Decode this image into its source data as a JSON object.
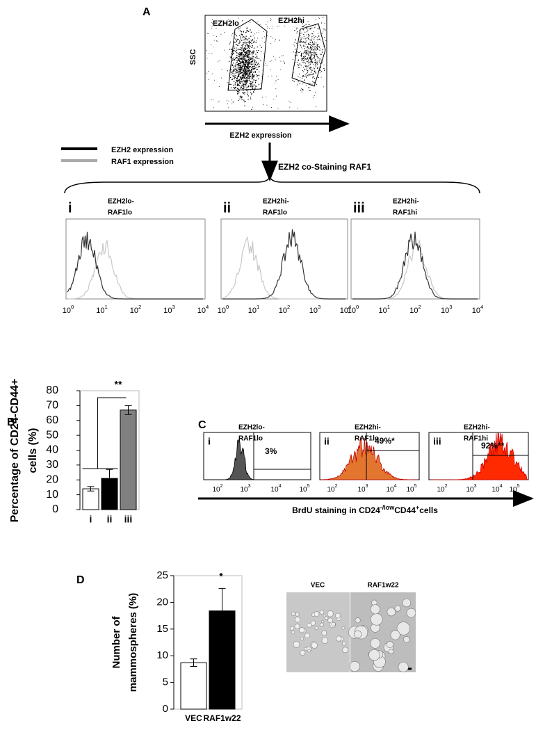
{
  "panel_a": {
    "letter": "A",
    "y_label": "SSC",
    "gate_labels": [
      "EZH2lo",
      "EZH2hi"
    ],
    "x_label": "EZH2 expression",
    "legend": [
      "EZH2 expression",
      "RAF1 expression"
    ],
    "arrow_label": "EZH2 co-Staining RAF1",
    "histograms": [
      {
        "numeral": "i",
        "label": [
          "EZH2lo-",
          "RAF1lo"
        ]
      },
      {
        "numeral": "ii",
        "label": [
          "EZH2hi-",
          "RAF1lo"
        ]
      },
      {
        "numeral": "iii",
        "label": [
          "EZH2hi-",
          "RAF1hi"
        ]
      }
    ],
    "xticks": [
      {
        "base": "10",
        "exp": "0"
      },
      {
        "base": "10",
        "exp": "1"
      },
      {
        "base": "10",
        "exp": "2"
      },
      {
        "base": "10",
        "exp": "3"
      },
      {
        "base": "10",
        "exp": "4"
      }
    ]
  },
  "panel_c": {
    "letter": "C",
    "plots": [
      {
        "numeral": "i",
        "label": [
          "EZH2lo-",
          "RAF1lo"
        ],
        "percent": "3%"
      },
      {
        "numeral": "ii",
        "label": [
          "EZH2hi-",
          "RAF1lo"
        ],
        "percent": "49%*"
      },
      {
        "numeral": "iii",
        "label": [
          "EZH2hi-",
          "RAF1hi"
        ],
        "percent": "92%**"
      }
    ],
    "xticks": [
      {
        "base": "10",
        "exp": "2"
      },
      {
        "base": "10",
        "exp": "3"
      },
      {
        "base": "10",
        "exp": "4"
      },
      {
        "base": "10",
        "exp": "5"
      }
    ],
    "x_label": [
      "BrdU staining in CD24",
      "-/low",
      "CD44",
      "+",
      "cells"
    ]
  },
  "panel_d_images": {
    "labels": [
      "VEC",
      "RAF1w22"
    ]
  },
  "chart_data": [
    {
      "type": "bar",
      "letter": "B",
      "y_label": [
        "Percentage of CD24-CD44+",
        "cells (%)"
      ],
      "categories": [
        "i",
        "ii",
        "iii"
      ],
      "values": [
        14,
        21,
        67
      ],
      "errors": [
        1.5,
        6,
        3
      ],
      "colors": [
        "#ffffff",
        "#000000",
        "#808080"
      ],
      "ylim": [
        0,
        80
      ],
      "yticks": [
        0,
        10,
        20,
        30,
        40,
        50,
        60,
        70,
        80
      ],
      "annotation": "**"
    },
    {
      "type": "bar",
      "letter": "D",
      "y_label": [
        "Number of",
        "mammospheres (%)"
      ],
      "categories": [
        "VEC",
        "RAF1w22"
      ],
      "values": [
        8.7,
        18.4
      ],
      "errors": [
        0.7,
        4.2
      ],
      "colors": [
        "#ffffff",
        "#000000"
      ],
      "ylim": [
        0,
        25
      ],
      "yticks": [
        0,
        5,
        10,
        15,
        20,
        25
      ],
      "annotation": "*"
    }
  ]
}
